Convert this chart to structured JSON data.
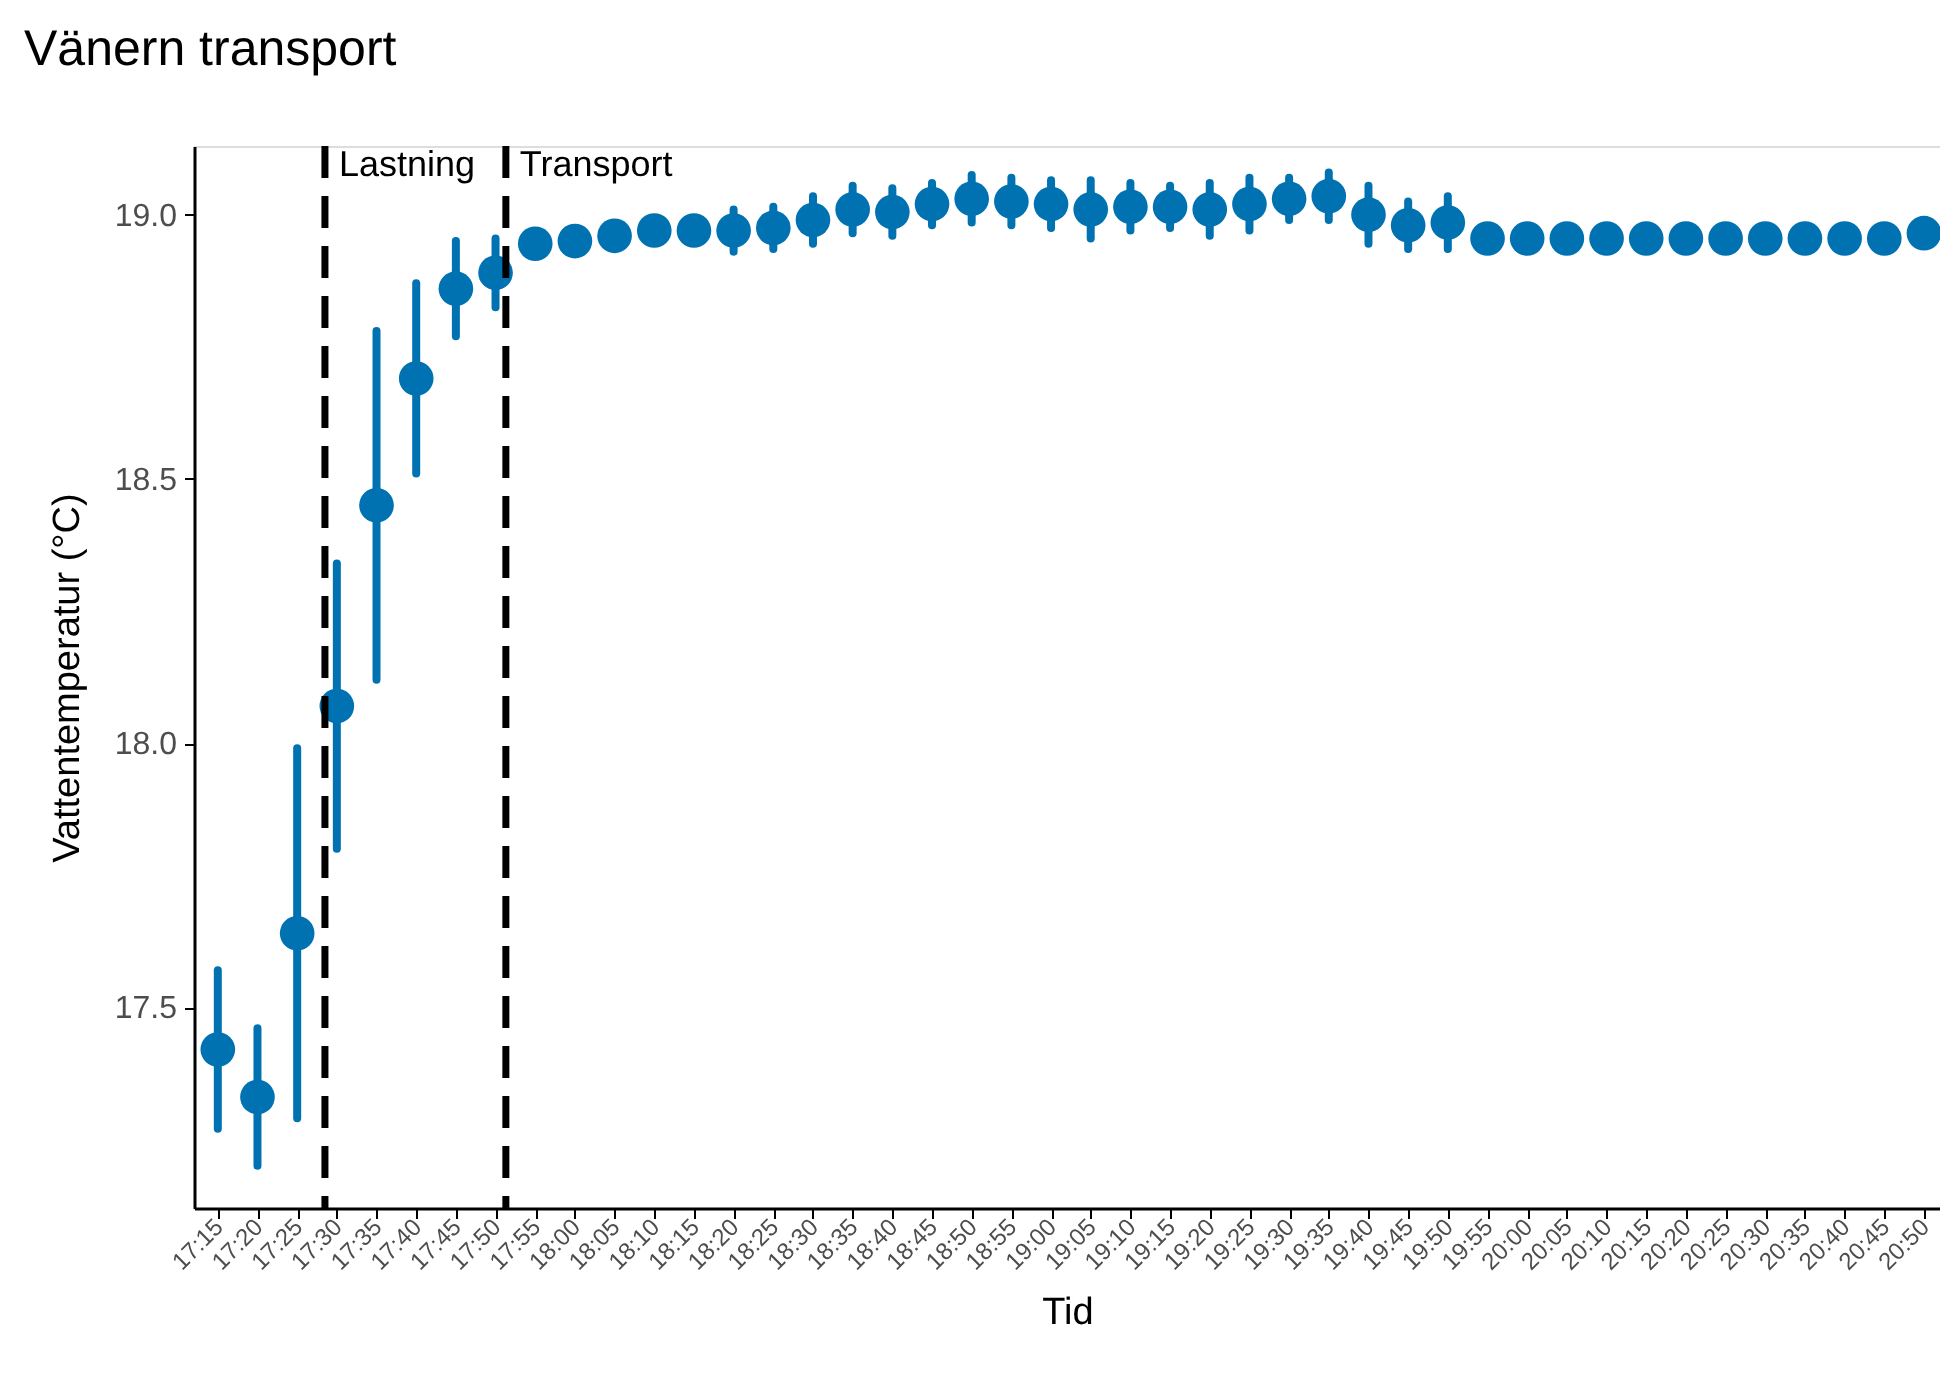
{
  "chart_data": {
    "type": "scatter",
    "title": "Vänern transport",
    "xlabel": "Tid",
    "ylabel": "Vattentemperatur (°C)",
    "x": [
      17.25,
      17.3333,
      17.4167,
      17.5,
      17.5833,
      17.6667,
      17.75,
      17.8333,
      17.9167,
      18,
      18.0833,
      18.1667,
      18.25,
      18.3333,
      18.4167,
      18.5,
      18.5833,
      18.6667,
      18.75,
      18.8333,
      18.9167,
      19,
      19.0833,
      19.1667,
      19.25,
      19.3333,
      19.4167,
      19.5,
      19.5833,
      19.6667,
      19.75,
      19.8333,
      19.9167,
      20,
      20.0833,
      20.1667,
      20.25,
      20.3333,
      20.4167,
      20.5,
      20.5833,
      20.6667,
      20.75,
      20.8333
    ],
    "values": [
      17.42,
      17.33,
      17.64,
      18.07,
      18.45,
      18.69,
      18.86,
      18.89,
      18.945,
      18.95,
      18.96,
      18.97,
      18.97,
      18.97,
      18.975,
      18.99,
      19.01,
      19.005,
      19.02,
      19.03,
      19.025,
      19.02,
      19.01,
      19.015,
      19.015,
      19.01,
      19.02,
      19.03,
      19.035,
      19.0,
      18.98,
      18.985,
      18.955,
      18.955,
      18.955,
      18.955,
      18.955,
      18.955,
      18.955,
      18.955,
      18.955,
      18.955,
      18.955,
      18.965
    ],
    "errors": [
      0.15,
      0.13,
      0.35,
      0.27,
      0.33,
      0.18,
      0.09,
      0.065,
      null,
      null,
      null,
      null,
      null,
      0.04,
      0.04,
      0.045,
      0.045,
      0.045,
      0.04,
      0.045,
      0.045,
      0.045,
      0.055,
      0.045,
      0.04,
      0.05,
      0.05,
      0.04,
      0.045,
      0.055,
      0.045,
      0.05,
      null,
      null,
      null,
      null,
      null,
      null,
      null,
      null,
      null,
      null,
      null,
      null
    ],
    "color": "#0072b2",
    "marker": "circle",
    "grid": false,
    "xlim": [
      17.2,
      20.867
    ],
    "xticks": [
      {
        "value": 17.25,
        "label": "17:15"
      },
      {
        "value": 17.3333,
        "label": "17:20"
      },
      {
        "value": 17.4167,
        "label": "17:25"
      },
      {
        "value": 17.5,
        "label": "17:30"
      },
      {
        "value": 17.5833,
        "label": "17:35"
      },
      {
        "value": 17.6667,
        "label": "17:40"
      },
      {
        "value": 17.75,
        "label": "17:45"
      },
      {
        "value": 17.8333,
        "label": "17:50"
      },
      {
        "value": 17.9167,
        "label": "17:55"
      },
      {
        "value": 18,
        "label": "18:00"
      },
      {
        "value": 18.0833,
        "label": "18:05"
      },
      {
        "value": 18.1667,
        "label": "18:10"
      },
      {
        "value": 18.25,
        "label": "18:15"
      },
      {
        "value": 18.3333,
        "label": "18:20"
      },
      {
        "value": 18.4167,
        "label": "18:25"
      },
      {
        "value": 18.5,
        "label": "18:30"
      },
      {
        "value": 18.5833,
        "label": "18:35"
      },
      {
        "value": 18.6667,
        "label": "18:40"
      },
      {
        "value": 18.75,
        "label": "18:45"
      },
      {
        "value": 18.8333,
        "label": "18:50"
      },
      {
        "value": 18.9167,
        "label": "18:55"
      },
      {
        "value": 19,
        "label": "19:00"
      },
      {
        "value": 19.0833,
        "label": "19:05"
      },
      {
        "value": 19.1667,
        "label": "19:10"
      },
      {
        "value": 19.25,
        "label": "19:15"
      },
      {
        "value": 19.3333,
        "label": "19:20"
      },
      {
        "value": 19.4167,
        "label": "19:25"
      },
      {
        "value": 19.5,
        "label": "19:30"
      },
      {
        "value": 19.5833,
        "label": "19:35"
      },
      {
        "value": 19.6667,
        "label": "19:40"
      },
      {
        "value": 19.75,
        "label": "19:45"
      },
      {
        "value": 19.8333,
        "label": "19:50"
      },
      {
        "value": 19.9167,
        "label": "19:55"
      },
      {
        "value": 20,
        "label": "20:00"
      },
      {
        "value": 20.0833,
        "label": "20:05"
      },
      {
        "value": 20.1667,
        "label": "20:10"
      },
      {
        "value": 20.25,
        "label": "20:15"
      },
      {
        "value": 20.3333,
        "label": "20:20"
      },
      {
        "value": 20.4167,
        "label": "20:25"
      },
      {
        "value": 20.5,
        "label": "20:30"
      },
      {
        "value": 20.5833,
        "label": "20:35"
      },
      {
        "value": 20.6667,
        "label": "20:40"
      },
      {
        "value": 20.75,
        "label": "20:45"
      },
      {
        "value": 20.8333,
        "label": "20:50"
      }
    ],
    "ylim": [
      17.12,
      19.13
    ],
    "yticks": [
      17.5,
      {
        "value": 18,
        "label": "18.0"
      },
      18.5,
      {
        "value": 19,
        "label": "19.0"
      }
    ],
    "ref_lines": [
      {
        "axis": "x",
        "value": 17.475,
        "label": "Lastning",
        "color": "#000000",
        "line_style": "dashed"
      },
      {
        "axis": "x",
        "value": 17.855,
        "label": "Transport",
        "color": "#000000",
        "line_style": "dashed"
      }
    ]
  }
}
